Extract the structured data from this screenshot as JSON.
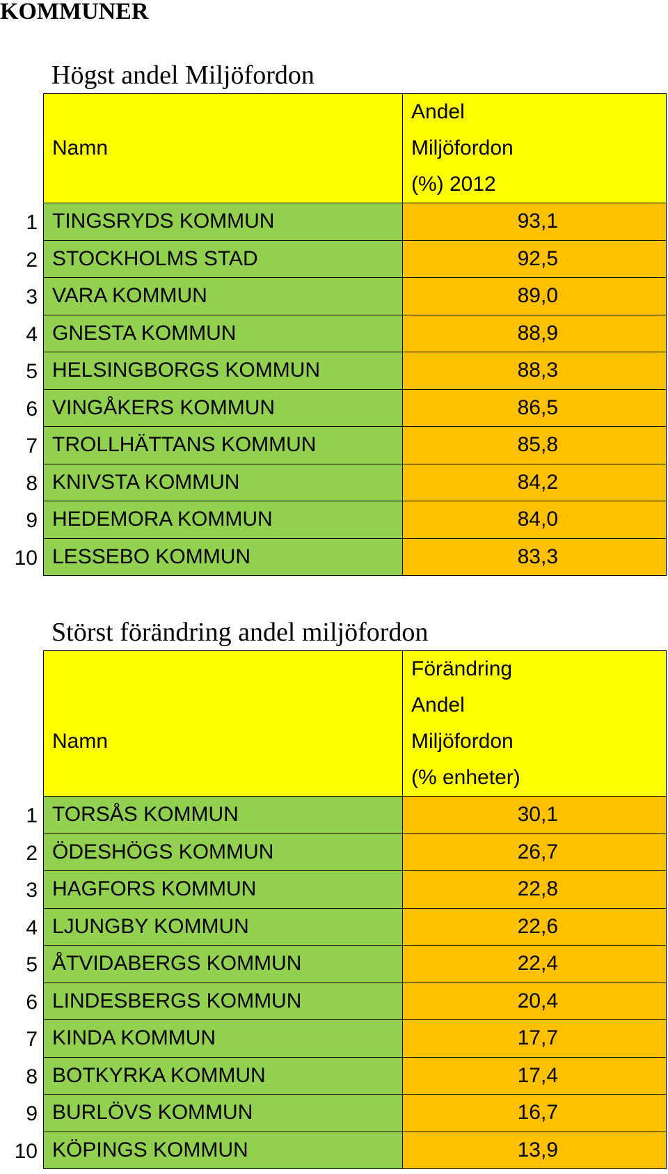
{
  "page_heading": "KOMMUNER",
  "table1": {
    "title": "Högst andel Miljöfordon",
    "header_name": "Namn",
    "header_value_lines": [
      "Andel",
      "Miljöfordon",
      " (%) 2012"
    ],
    "rows": [
      {
        "rank": "1",
        "name": "TINGSRYDS KOMMUN",
        "value": "93,1"
      },
      {
        "rank": "2",
        "name": "STOCKHOLMS STAD",
        "value": "92,5"
      },
      {
        "rank": "3",
        "name": "VARA KOMMUN",
        "value": "89,0"
      },
      {
        "rank": "4",
        "name": "GNESTA KOMMUN",
        "value": "88,9"
      },
      {
        "rank": "5",
        "name": "HELSINGBORGS KOMMUN",
        "value": "88,3"
      },
      {
        "rank": "6",
        "name": "VINGÅKERS KOMMUN",
        "value": "86,5"
      },
      {
        "rank": "7",
        "name": "TROLLHÄTTANS KOMMUN",
        "value": "85,8"
      },
      {
        "rank": "8",
        "name": "KNIVSTA KOMMUN",
        "value": "84,2"
      },
      {
        "rank": "9",
        "name": "HEDEMORA KOMMUN",
        "value": "84,0"
      },
      {
        "rank": "10",
        "name": "LESSEBO KOMMUN",
        "value": "83,3"
      }
    ]
  },
  "table2": {
    "title": "Störst förändring andel miljöfordon",
    "header_name": "Namn",
    "header_value_lines": [
      "Förändring",
      "Andel",
      "Miljöfordon",
      "(% enheter)"
    ],
    "rows": [
      {
        "rank": "1",
        "name": "TORSÅS KOMMUN",
        "value": "30,1"
      },
      {
        "rank": "2",
        "name": "ÖDESHÖGS KOMMUN",
        "value": "26,7"
      },
      {
        "rank": "3",
        "name": "HAGFORS KOMMUN",
        "value": "22,8"
      },
      {
        "rank": "4",
        "name": "LJUNGBY KOMMUN",
        "value": "22,6"
      },
      {
        "rank": "5",
        "name": "ÅTVIDABERGS KOMMUN",
        "value": "22,4"
      },
      {
        "rank": "6",
        "name": "LINDESBERGS KOMMUN",
        "value": "20,4"
      },
      {
        "rank": "7",
        "name": "KINDA KOMMUN",
        "value": "17,7"
      },
      {
        "rank": "8",
        "name": "BOTKYRKA KOMMUN",
        "value": "17,4"
      },
      {
        "rank": "9",
        "name": "BURLÖVS KOMMUN",
        "value": "16,7"
      },
      {
        "rank": "10",
        "name": "KÖPINGS KOMMUN",
        "value": "13,9"
      }
    ]
  },
  "colors": {
    "header": "#ffff00",
    "name_column": "#92d050",
    "value_column": "#ffc000"
  }
}
